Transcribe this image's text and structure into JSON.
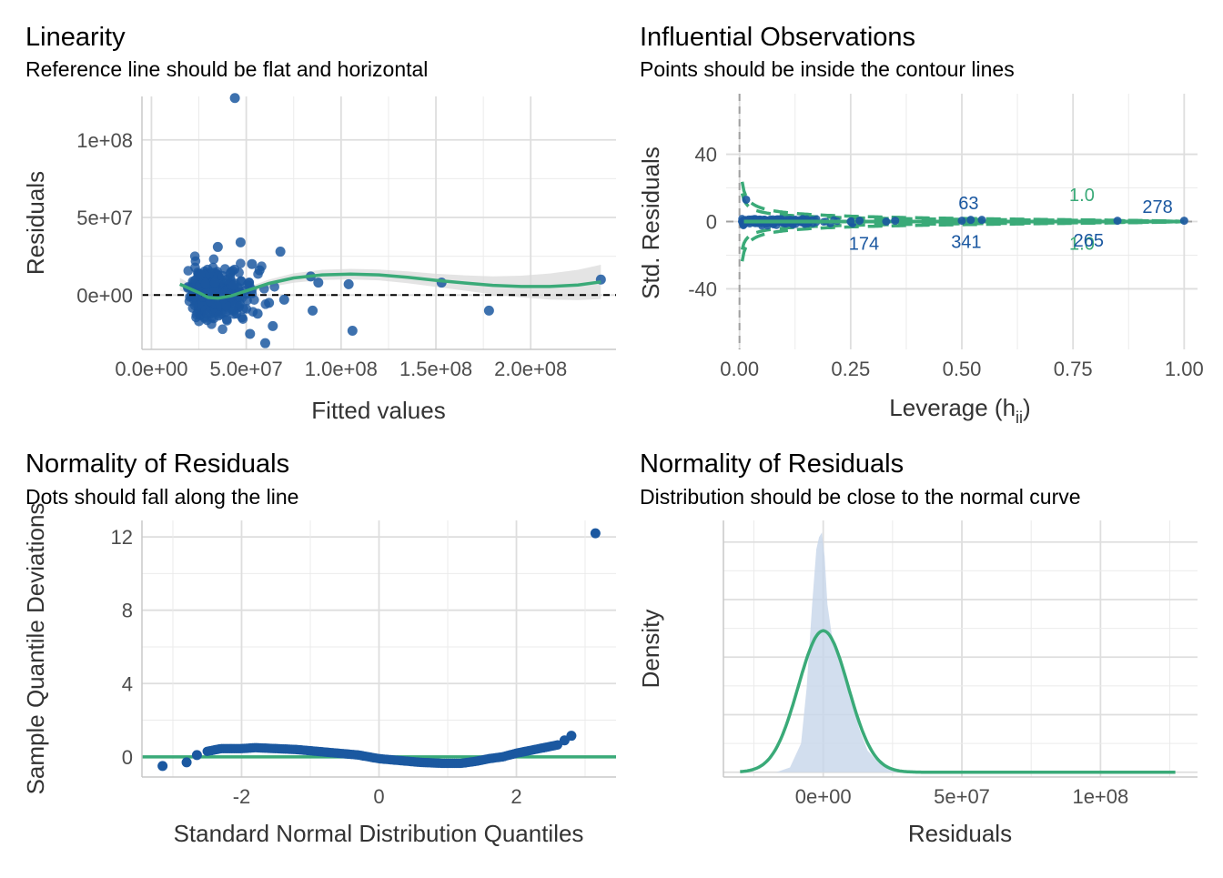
{
  "colors": {
    "points": "#1b58a0",
    "fit_line": "#3aaa78",
    "ci_band": "#d9d9d9",
    "density_fill": "#c7d6ea",
    "reference": "#000000",
    "leverage_ref": "#a0a0a0"
  },
  "chart_data": [
    {
      "id": "linearity",
      "type": "scatter",
      "title": "Linearity",
      "subtitle": "Reference line should be flat and horizontal",
      "xlabel": "Fitted values",
      "ylabel": "Residuals",
      "xlim": [
        -5000000,
        245000000
      ],
      "ylim": [
        -35000000,
        128000000
      ],
      "x_ticks": [
        0,
        50000000,
        100000000,
        150000000,
        200000000
      ],
      "x_tick_labels": [
        "0.0e+00",
        "5.0e+07",
        "1.0e+08",
        "1.5e+08",
        "2.0e+08"
      ],
      "y_ticks": [
        0,
        50000000,
        100000000
      ],
      "y_tick_labels": [
        "0e+00",
        "5e+07",
        "1e+08"
      ],
      "reference_line_y": 0,
      "highlight_points": [
        {
          "x": 44000000,
          "y": 127000000
        },
        {
          "x": 237000000,
          "y": 10000000
        },
        {
          "x": 178000000,
          "y": -10000000
        },
        {
          "x": 153000000,
          "y": 8000000
        },
        {
          "x": 106000000,
          "y": -23000000
        },
        {
          "x": 104000000,
          "y": 7000000
        },
        {
          "x": 68000000,
          "y": 28000000
        },
        {
          "x": 70000000,
          "y": -3000000
        },
        {
          "x": 84000000,
          "y": 12000000
        },
        {
          "x": 88000000,
          "y": 8000000
        },
        {
          "x": 85000000,
          "y": -10000000
        },
        {
          "x": 60000000,
          "y": -31000000
        },
        {
          "x": 62000000,
          "y": -5000000
        },
        {
          "x": 53000000,
          "y": 20000000
        },
        {
          "x": 57000000,
          "y": 16000000
        },
        {
          "x": 47000000,
          "y": 34000000
        },
        {
          "x": 35000000,
          "y": 31000000
        },
        {
          "x": 52000000,
          "y": -25000000
        },
        {
          "x": 64000000,
          "y": -20000000
        },
        {
          "x": 56000000,
          "y": -12000000
        }
      ],
      "smooth": {
        "x": [
          15000000,
          25000000,
          30000000,
          35000000,
          42000000,
          52000000,
          62000000,
          75000000,
          90000000,
          105000000,
          120000000,
          135000000,
          150000000,
          165000000,
          180000000,
          195000000,
          210000000,
          225000000,
          237000000
        ],
        "y": [
          7000000,
          1500000,
          -1500000,
          -2000000,
          -500000,
          3500000,
          7500000,
          11000000,
          13000000,
          13500000,
          13000000,
          11500000,
          9500000,
          7800000,
          6300000,
          5500000,
          5500000,
          6500000,
          8500000
        ],
        "ci_half_width": [
          4000000,
          2800000,
          2000000,
          1700000,
          1700000,
          2000000,
          2500000,
          3000000,
          3300000,
          3400000,
          3500000,
          3800000,
          4200000,
          4900000,
          5800000,
          7000000,
          8400000,
          9800000,
          11000000
        ]
      }
    },
    {
      "id": "influential",
      "type": "scatter",
      "title": "Influential Observations",
      "subtitle": "Points should be inside the contour lines",
      "xlabel": "Leverage (h",
      "xlabel_sub": "ii",
      "xlabel_close": ")",
      "ylabel": "Std. Residuals",
      "xlim": [
        -0.03,
        1.03
      ],
      "ylim": [
        -76,
        76
      ],
      "x_ticks": [
        0,
        0.25,
        0.5,
        0.75,
        1.0
      ],
      "x_tick_labels": [
        "0.00",
        "0.25",
        "0.50",
        "0.75",
        "1.00"
      ],
      "y_ticks": [
        -40,
        0,
        40
      ],
      "y_tick_labels": [
        "-40",
        "0",
        "40"
      ],
      "leverage_ref_x": 0,
      "contour_levels": [
        0.5,
        1.0
      ],
      "contour_labels": [
        {
          "text": "1.0",
          "x": 0.77,
          "y": 16
        },
        {
          "text": "1.0",
          "x": 0.77,
          "y": -13
        }
      ],
      "point_labels": [
        {
          "text": "63",
          "x": 0.515,
          "y": 11
        },
        {
          "text": "278",
          "x": 0.94,
          "y": 9
        },
        {
          "text": "174",
          "x": 0.28,
          "y": -13
        },
        {
          "text": "341",
          "x": 0.51,
          "y": -12
        },
        {
          "text": "265",
          "x": 0.785,
          "y": -11
        }
      ],
      "highlight_points": [
        {
          "x": 0.015,
          "y": 13
        },
        {
          "x": 1.0,
          "y": 0.5
        },
        {
          "x": 0.5,
          "y": 0.5
        },
        {
          "x": 0.52,
          "y": 1
        },
        {
          "x": 0.545,
          "y": 1
        },
        {
          "x": 0.35,
          "y": 0.5
        },
        {
          "x": 0.25,
          "y": 0
        },
        {
          "x": 0.27,
          "y": 0.5
        },
        {
          "x": 0.33,
          "y": 0
        },
        {
          "x": 0.85,
          "y": 0.5
        }
      ]
    },
    {
      "id": "qq",
      "type": "scatter",
      "title": "Normality of Residuals",
      "subtitle": "Dots should fall along the line",
      "xlabel": "Standard Normal Distribution Quantiles",
      "ylabel": "Sample Quantile Deviations",
      "xlim": [
        -3.45,
        3.45
      ],
      "ylim": [
        -1.1,
        12.9
      ],
      "x_ticks": [
        -2,
        0,
        2
      ],
      "x_tick_labels": [
        "-2",
        "0",
        "2"
      ],
      "y_ticks": [
        0,
        4,
        8,
        12
      ],
      "y_tick_labels": [
        "0",
        "4",
        "8",
        "12"
      ],
      "reference_line_y": 0,
      "curve": {
        "x": [
          -2.5,
          -2.3,
          -2.0,
          -1.8,
          -1.5,
          -1.2,
          -0.9,
          -0.6,
          -0.3,
          0.0,
          0.3,
          0.6,
          0.9,
          1.2,
          1.4,
          1.6,
          1.8,
          2.0,
          2.2,
          2.4,
          2.6
        ],
        "y": [
          0.3,
          0.45,
          0.45,
          0.5,
          0.45,
          0.4,
          0.3,
          0.2,
          0.1,
          -0.1,
          -0.2,
          -0.3,
          -0.35,
          -0.35,
          -0.25,
          -0.1,
          0.0,
          0.2,
          0.35,
          0.5,
          0.65
        ]
      },
      "highlight_points": [
        {
          "x": -3.15,
          "y": -0.5
        },
        {
          "x": -2.8,
          "y": -0.3
        },
        {
          "x": -2.65,
          "y": 0.1
        },
        {
          "x": 2.7,
          "y": 0.9
        },
        {
          "x": 2.8,
          "y": 1.15
        },
        {
          "x": 3.15,
          "y": 12.2
        }
      ]
    },
    {
      "id": "density",
      "type": "area",
      "title": "Normality of Residuals",
      "subtitle": "Distribution should be close to the normal curve",
      "xlabel": "Residuals",
      "ylabel": "Density",
      "xlim": [
        -36000000,
        135000000
      ],
      "ylim": [
        -0.02,
        1.05
      ],
      "x_ticks": [
        0,
        50000000,
        100000000
      ],
      "x_tick_labels": [
        "0e+00",
        "5e+07",
        "1e+08"
      ],
      "empirical": {
        "x": [
          -24000000,
          -17000000,
          -12000000,
          -8000000,
          -6000000,
          -4000000,
          -2500000,
          -1500000,
          -500000,
          500000,
          1500000,
          3000000,
          5000000,
          7000000,
          9000000,
          11000000,
          13000000,
          16000000,
          20000000,
          25000000,
          30000000,
          40000000,
          60000000,
          90000000,
          127000000
        ],
        "y": [
          0.0,
          0.0,
          0.02,
          0.12,
          0.35,
          0.7,
          0.93,
          0.98,
          1.0,
          0.9,
          0.7,
          0.58,
          0.5,
          0.42,
          0.36,
          0.28,
          0.18,
          0.09,
          0.04,
          0.015,
          0.005,
          0.0,
          0.0,
          0.0,
          0.0
        ]
      },
      "normal_curve": {
        "mean": 0,
        "sd": 9000000,
        "peak": 0.59,
        "x_range": [
          -30000000,
          127000000
        ]
      }
    }
  ]
}
